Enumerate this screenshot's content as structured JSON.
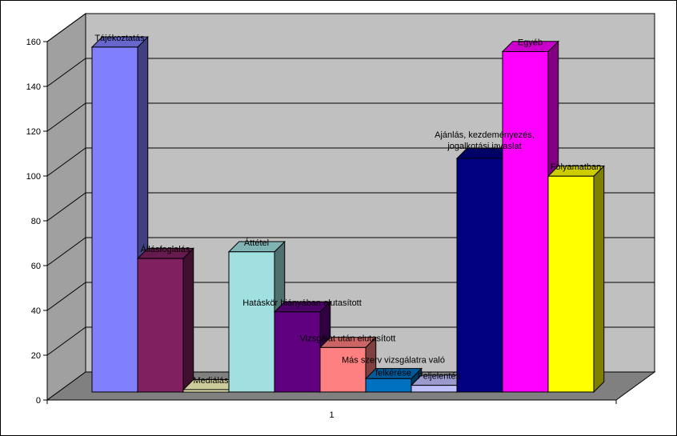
{
  "chart_data": {
    "type": "bar",
    "categories": [
      "1"
    ],
    "ylim": [
      0,
      160
    ],
    "yticks": [
      0,
      20,
      40,
      60,
      80,
      100,
      120,
      140,
      160
    ],
    "grid": true,
    "legend": "none",
    "series": [
      {
        "name": "Tájékoztatás",
        "values": [
          155
        ],
        "color": "#8080FF"
      },
      {
        "name": "Állásfoglalás",
        "values": [
          60
        ],
        "color": "#802060"
      },
      {
        "name": "Mediálás",
        "values": [
          1
        ],
        "color": "#FFFFC0"
      },
      {
        "name": "Áttétel",
        "values": [
          63
        ],
        "color": "#A0E0E0"
      },
      {
        "name": "Hatáskör hiányában elutasított",
        "values": [
          36
        ],
        "color": "#600080"
      },
      {
        "name": "Vizsgálat után elutasított",
        "values": [
          20
        ],
        "color": "#FF8080"
      },
      {
        "name": "Más szerv vizsgálatra való felkérése",
        "values": [
          6
        ],
        "color": "#0070C0"
      },
      {
        "name": "Feljelentés",
        "values": [
          3
        ],
        "color": "#C0C0FF"
      },
      {
        "name": "Ajánlás, kezdeményezés, jogalkotási javaslat",
        "values": [
          105
        ],
        "color": "#000080"
      },
      {
        "name": "Egyéb",
        "values": [
          153
        ],
        "color": "#FF00FF"
      },
      {
        "name": "Folyamatban",
        "values": [
          97
        ],
        "color": "#FFFF00"
      }
    ]
  }
}
